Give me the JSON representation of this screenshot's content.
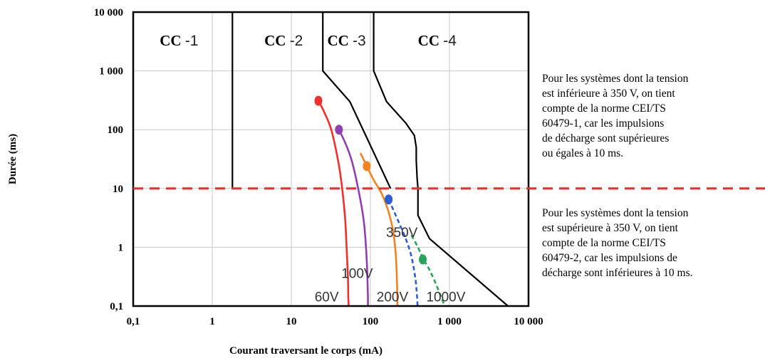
{
  "chart_data": {
    "type": "line",
    "xlabel": "Courant traversant le corps (mA)",
    "ylabel": "Durée (ms)",
    "x_scale": "log",
    "y_scale": "log",
    "xlim": [
      0.1,
      10000
    ],
    "ylim": [
      0.1,
      10000
    ],
    "x_ticks": [
      0.1,
      1,
      10,
      100,
      1000,
      10000
    ],
    "x_tick_labels": [
      "0,1",
      "1",
      "10",
      "100",
      "1 000",
      "10 000"
    ],
    "y_ticks": [
      0.1,
      1,
      10,
      100,
      1000,
      10000
    ],
    "y_tick_labels": [
      "0,1",
      "1",
      "10",
      "100",
      "1 000",
      "10 000"
    ],
    "grid": true,
    "zones": [
      {
        "label": "CC",
        "number": "-1"
      },
      {
        "label": "CC",
        "number": "-2"
      },
      {
        "label": "CC",
        "number": "-3"
      },
      {
        "label": "CC",
        "number": "-4"
      }
    ],
    "zone_boundaries": [
      {
        "x": [
          1.8,
          1.8
        ],
        "y": [
          10000,
          10
        ]
      },
      {
        "x": [
          25,
          25,
          55,
          180
        ],
        "y": [
          10000,
          1000,
          300,
          10
        ]
      },
      {
        "x": [
          110,
          110,
          160,
          280,
          360,
          380,
          380,
          390,
          400,
          400,
          560,
          5500
        ],
        "y": [
          10000,
          1000,
          300,
          130,
          80,
          50,
          30,
          15,
          10,
          3.5,
          1.4,
          0.1
        ]
      }
    ],
    "threshold": {
      "y": 10,
      "style": "dashed",
      "color": "#e8302f"
    },
    "series": [
      {
        "name": "60V",
        "color": "#f0302c",
        "style": "solid",
        "x": [
          22,
          26,
          32,
          39,
          44,
          48,
          50,
          52,
          52.5,
          53
        ],
        "y": [
          310,
          200,
          100,
          30,
          10,
          3,
          1,
          0.3,
          0.15,
          0.1
        ],
        "marker": {
          "x": 22,
          "y": 310
        }
      },
      {
        "name": "100V",
        "color": "#8f3fb0",
        "style": "solid",
        "x": [
          40,
          48,
          58,
          70,
          82,
          88,
          91,
          93,
          93
        ],
        "y": [
          100,
          60,
          30,
          10,
          3,
          1,
          0.4,
          0.15,
          0.1
        ],
        "marker": {
          "x": 40,
          "y": 100
        }
      },
      {
        "name": "200V",
        "color": "#f58220",
        "style": "solid",
        "x": [
          75,
          90,
          110,
          140,
          170,
          195,
          210,
          218,
          220
        ],
        "y": [
          40,
          24,
          14,
          8,
          4,
          1.8,
          0.7,
          0.2,
          0.1
        ],
        "marker": {
          "x": 90,
          "y": 24
        }
      },
      {
        "name": "350V",
        "color": "#2a5fd0",
        "style": "dashed",
        "x": [
          170,
          220,
          280,
          330,
          370,
          390,
          395
        ],
        "y": [
          6.5,
          3,
          1.4,
          0.7,
          0.3,
          0.14,
          0.1
        ],
        "marker": {
          "x": 170,
          "y": 6.5
        }
      },
      {
        "name": "1000V",
        "color": "#27a35a",
        "style": "dashed",
        "x": [
          330,
          400,
          460,
          540,
          640,
          760,
          870
        ],
        "y": [
          1.6,
          1.0,
          0.65,
          0.45,
          0.28,
          0.16,
          0.1
        ],
        "marker": {
          "x": 460,
          "y": 0.62
        }
      }
    ]
  },
  "notes": {
    "upper": "Pour les systèmes dont la tension\nest inférieure à 350 V, on tient\ncompte de la norme CEI/TS\n60479-1, car les impulsions\nde décharge sont supérieures\nou égales à 10 ms.",
    "lower": "Pour les systèmes dont la tension\nest supérieure à 350 V, on tient\ncompte de la norme CEI/TS\n60479-2, car les impulsions de\ndécharge sont inférieures à 10 ms."
  }
}
